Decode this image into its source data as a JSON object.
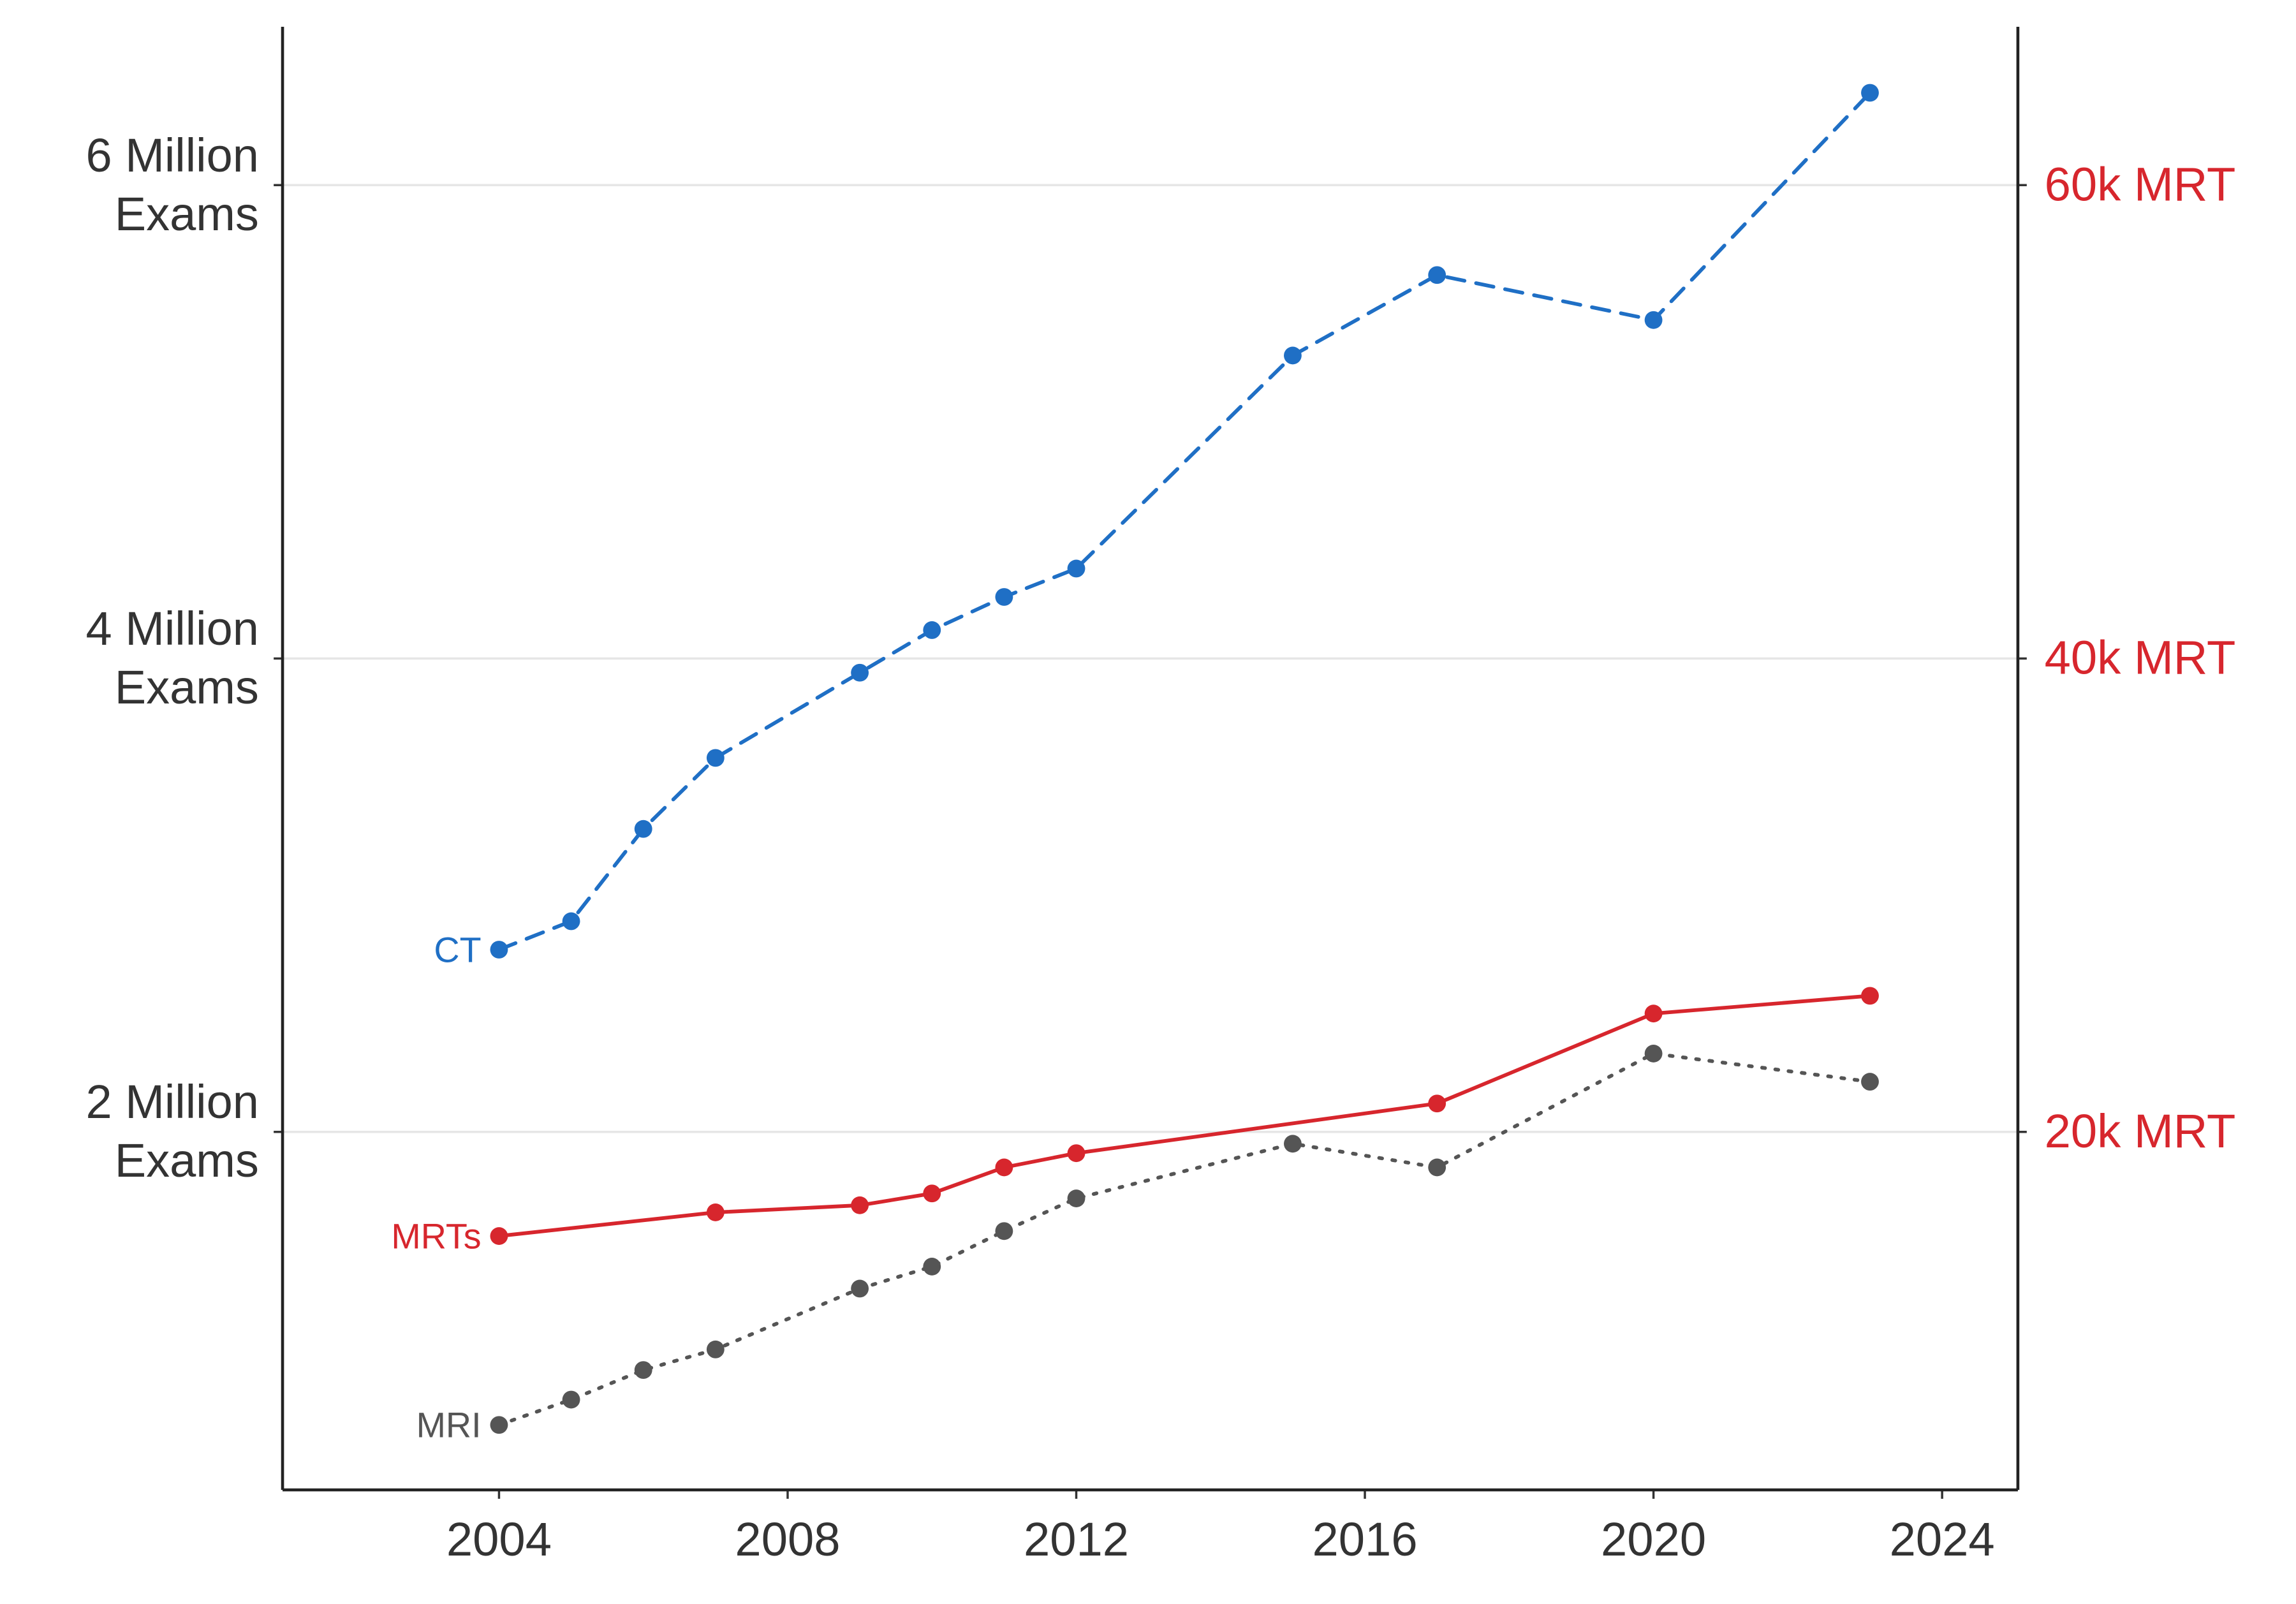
{
  "chart_data": {
    "type": "line",
    "xlim": [
      2001,
      2025.05
    ],
    "xticks": [
      2004,
      2008,
      2012,
      2016,
      2020,
      2024
    ],
    "ylim": [
      487500,
      6668750
    ],
    "yticks": [
      {
        "value": 2000000,
        "label": "2 Million\nExams"
      },
      {
        "value": 4000000,
        "label": "4 Million\nExams"
      },
      {
        "value": 6000000,
        "label": "6 Million\nExams"
      }
    ],
    "y2lim": [
      4875,
      66687.5
    ],
    "y2ticks": [
      {
        "value": 20000,
        "label": "20k MRT"
      },
      {
        "value": 40000,
        "label": "40k MRT"
      },
      {
        "value": 60000,
        "label": "60k MRT"
      }
    ],
    "grid": true,
    "series": [
      {
        "name": "CT",
        "color": "#1f6fc5",
        "dash": "dashed",
        "x": [
          2004,
          2005,
          2006,
          2007,
          2009,
          2010,
          2011,
          2012,
          2015,
          2017,
          2020,
          2023
        ],
        "values": [
          2770000,
          2890000,
          3280000,
          3580000,
          3940000,
          4120000,
          4260000,
          4380000,
          5280000,
          5620000,
          5430000,
          6390000
        ]
      },
      {
        "name": "MRTs",
        "color": "#d7262d",
        "dash": "solid",
        "axis": "y2",
        "x": [
          2004,
          2007,
          2009,
          2010,
          2011,
          2012,
          2017,
          2020,
          2023
        ],
        "values": [
          15600,
          16600,
          16900,
          17400,
          18500,
          19100,
          21200,
          25000,
          25750
        ]
      },
      {
        "name": "MRI",
        "color": "#555555",
        "dash": "dotted",
        "x": [
          2004,
          2005,
          2006,
          2007,
          2009,
          2010,
          2011,
          2012,
          2015,
          2017,
          2020,
          2023
        ],
        "values": [
          762000,
          869000,
          994000,
          1081000,
          1338000,
          1431000,
          1581000,
          1719000,
          1950000,
          1850000,
          2331000,
          2212000
        ]
      }
    ]
  }
}
